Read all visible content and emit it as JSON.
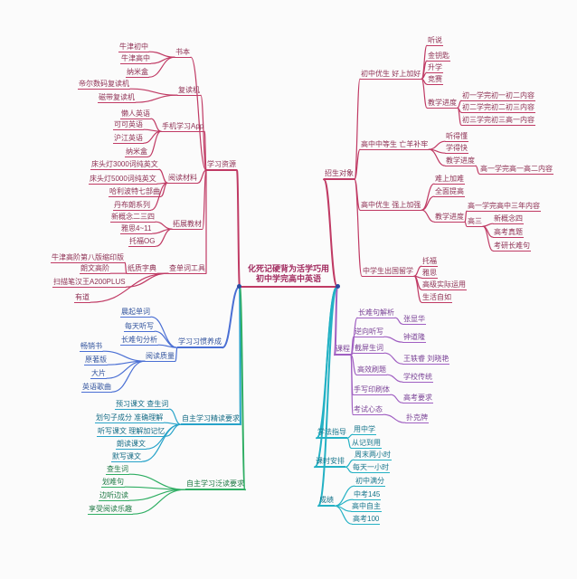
{
  "colors": {
    "crimson": "#c03a64",
    "purple": "#a05fc2",
    "cyan": "#23b1c4",
    "blue": "#4a6fd4",
    "teal": "#27a3c9",
    "green": "#2fae63",
    "anchor_dot": "#2b4aa0"
  },
  "center": {
    "line1": "化死记硬背为活学巧用",
    "line2": "初中学完高中英语"
  },
  "resources": {
    "label": "学习资源",
    "books": {
      "label": "书本",
      "items": [
        "牛津初中",
        "牛津高中",
        "纳米盒"
      ]
    },
    "repeaters": {
      "label": "复读机",
      "items": [
        "帝尔数码复读机",
        "磁带复读机"
      ]
    },
    "apps": {
      "label": "手机学习App",
      "items": [
        "懒人英语",
        "可可英语",
        "沪江英语",
        "纳米盒"
      ]
    },
    "reading": {
      "label": "阅读材料",
      "items": [
        "床头灯3000词纯英文",
        "床头灯5000词纯英文",
        "哈利波特七部曲",
        "丹布朗系列"
      ]
    },
    "extended": {
      "label": "拓展教材",
      "items": [
        "新概念二三四",
        "雅思4~11",
        "托福OG"
      ]
    },
    "dict": {
      "label": "查单词工具",
      "paper": {
        "label": "纸质字典",
        "items": [
          "牛津高阶第八版缩印版",
          "朗文高阶"
        ]
      },
      "items": [
        "扫描笔汉王A200PLUS",
        "有道"
      ]
    }
  },
  "enroll": {
    "label": "招生对象",
    "junior_top": {
      "label": "初中优生 好上加好",
      "items": [
        "听说",
        "金钥匙",
        "升学",
        "竞赛"
      ],
      "pace": {
        "label": "教学进度",
        "items": [
          "初一学完初一初二内容",
          "初二学完初二初三内容",
          "初三学完初三高一内容"
        ]
      }
    },
    "senior_mid": {
      "label": "高中中等生 亡羊补牢",
      "items": [
        "听得懂",
        "学得快"
      ],
      "pace": {
        "label": "教学进度",
        "items": [
          "高一学完高一高二内容"
        ]
      }
    },
    "senior_top": {
      "label": "高中优生 强上加强",
      "items": [
        "难上加难",
        "全面提高"
      ],
      "pace": {
        "label": "教学进度",
        "items": [
          "高一学完高中三年内容"
        ],
        "gaosan": {
          "label": "高三",
          "items": [
            "新概念四",
            "高考真题",
            "考研长难句"
          ]
        }
      }
    },
    "abroad": {
      "label": "中学生出国留学",
      "items": [
        "托福",
        "雅思",
        "高级实际运用",
        "生活自如"
      ]
    }
  },
  "courses": {
    "label": "课程",
    "items": [
      {
        "label": "长难句解析",
        "sub": "张显华"
      },
      {
        "label": "逆向听写",
        "sub": "钟道隆"
      },
      {
        "label": "截屏生词",
        "sub": "王轶睿 刘晓艳"
      },
      {
        "label": "高效刷题",
        "sub": "学校传统"
      },
      {
        "label": "手写印刷体",
        "sub": "高考要求"
      },
      {
        "label": "考试心态",
        "sub": "扑克牌"
      }
    ]
  },
  "guidance": {
    "label": "学法指导",
    "items": [
      "用中学",
      "从记到用"
    ]
  },
  "schedule": {
    "label": "课时安排",
    "items": [
      "周末两小时",
      "每天一小时"
    ]
  },
  "results": {
    "label": "成绩",
    "items": [
      "初中满分",
      "中考145",
      "高中自主",
      "高考100"
    ]
  },
  "habits": {
    "label": "学习习惯养成",
    "items": [
      "晨起单词",
      "每天听写",
      "长难句分析"
    ],
    "quality": {
      "label": "阅读质量",
      "items": [
        "畅销书",
        "原著版",
        "大片",
        "英语歌曲"
      ]
    }
  },
  "intensive": {
    "label": "自主学习精读要求",
    "items": [
      "预习课文 查生词",
      "划句子成分 准确理解",
      "听写课文 理解加记忆",
      "朗读课文",
      "默写课文"
    ]
  },
  "extensive": {
    "label": "自主学习泛读要求",
    "items": [
      "查生词",
      "划难句",
      "边听边读",
      "享受阅读乐趣"
    ]
  }
}
